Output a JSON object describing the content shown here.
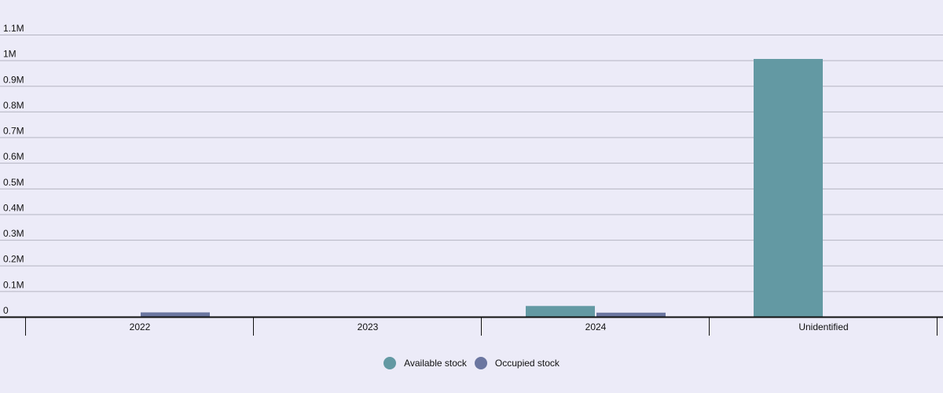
{
  "colors": {
    "background": "#ecebf8",
    "gridline": "#b5b5c2",
    "axis": "#111111",
    "available": "#6399a3",
    "occupied": "#6b76a0"
  },
  "chart_data": {
    "type": "bar",
    "title": "",
    "xlabel": "",
    "ylabel": "",
    "categories": [
      "2022",
      "2023",
      "2024",
      "Unidentified"
    ],
    "series": [
      {
        "name": "Available stock",
        "color": "#6399a3",
        "values": [
          0,
          0,
          42000,
          1005000
        ]
      },
      {
        "name": "Occupied stock",
        "color": "#6b76a0",
        "values": [
          17000,
          0,
          16000,
          0
        ]
      }
    ],
    "ylim": [
      0,
      1100000
    ],
    "y_ticks": [
      {
        "value": 0,
        "label": "0"
      },
      {
        "value": 100000,
        "label": "0.1M"
      },
      {
        "value": 200000,
        "label": "0.2M"
      },
      {
        "value": 300000,
        "label": "0.3M"
      },
      {
        "value": 400000,
        "label": "0.4M"
      },
      {
        "value": 500000,
        "label": "0.5M"
      },
      {
        "value": 600000,
        "label": "0.6M"
      },
      {
        "value": 700000,
        "label": "0.7M"
      },
      {
        "value": 800000,
        "label": "0.8M"
      },
      {
        "value": 900000,
        "label": "0.9M"
      },
      {
        "value": 1000000,
        "label": "1M"
      },
      {
        "value": 1100000,
        "label": "1.1M"
      }
    ],
    "grid": true,
    "legend_position": "bottom-center"
  }
}
